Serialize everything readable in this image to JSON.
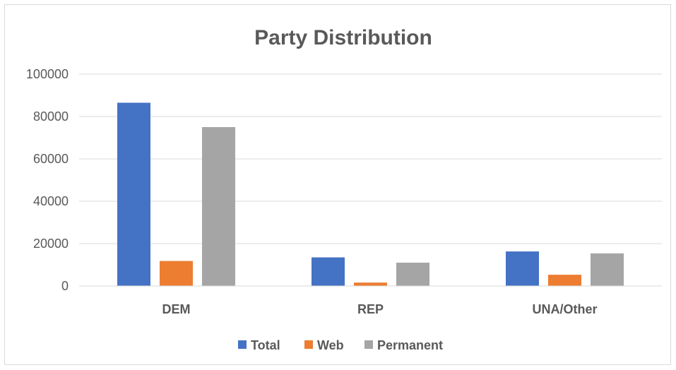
{
  "chart_data": {
    "type": "bar",
    "title": "Party Distribution",
    "categories": [
      "DEM",
      "REP",
      "UNA/Other"
    ],
    "series": [
      {
        "name": "Total",
        "values": [
          86500,
          13500,
          16300
        ],
        "color": "#4472c4"
      },
      {
        "name": "Web",
        "values": [
          11800,
          1600,
          5300
        ],
        "color": "#ed7d31"
      },
      {
        "name": "Permanent",
        "values": [
          75000,
          11000,
          15400
        ],
        "color": "#a5a5a5"
      }
    ],
    "yticks": [
      "0",
      "20000",
      "40000",
      "60000",
      "80000",
      "100000"
    ],
    "ylim": [
      0,
      100000
    ],
    "grid": true,
    "legend_position": "bottom"
  }
}
